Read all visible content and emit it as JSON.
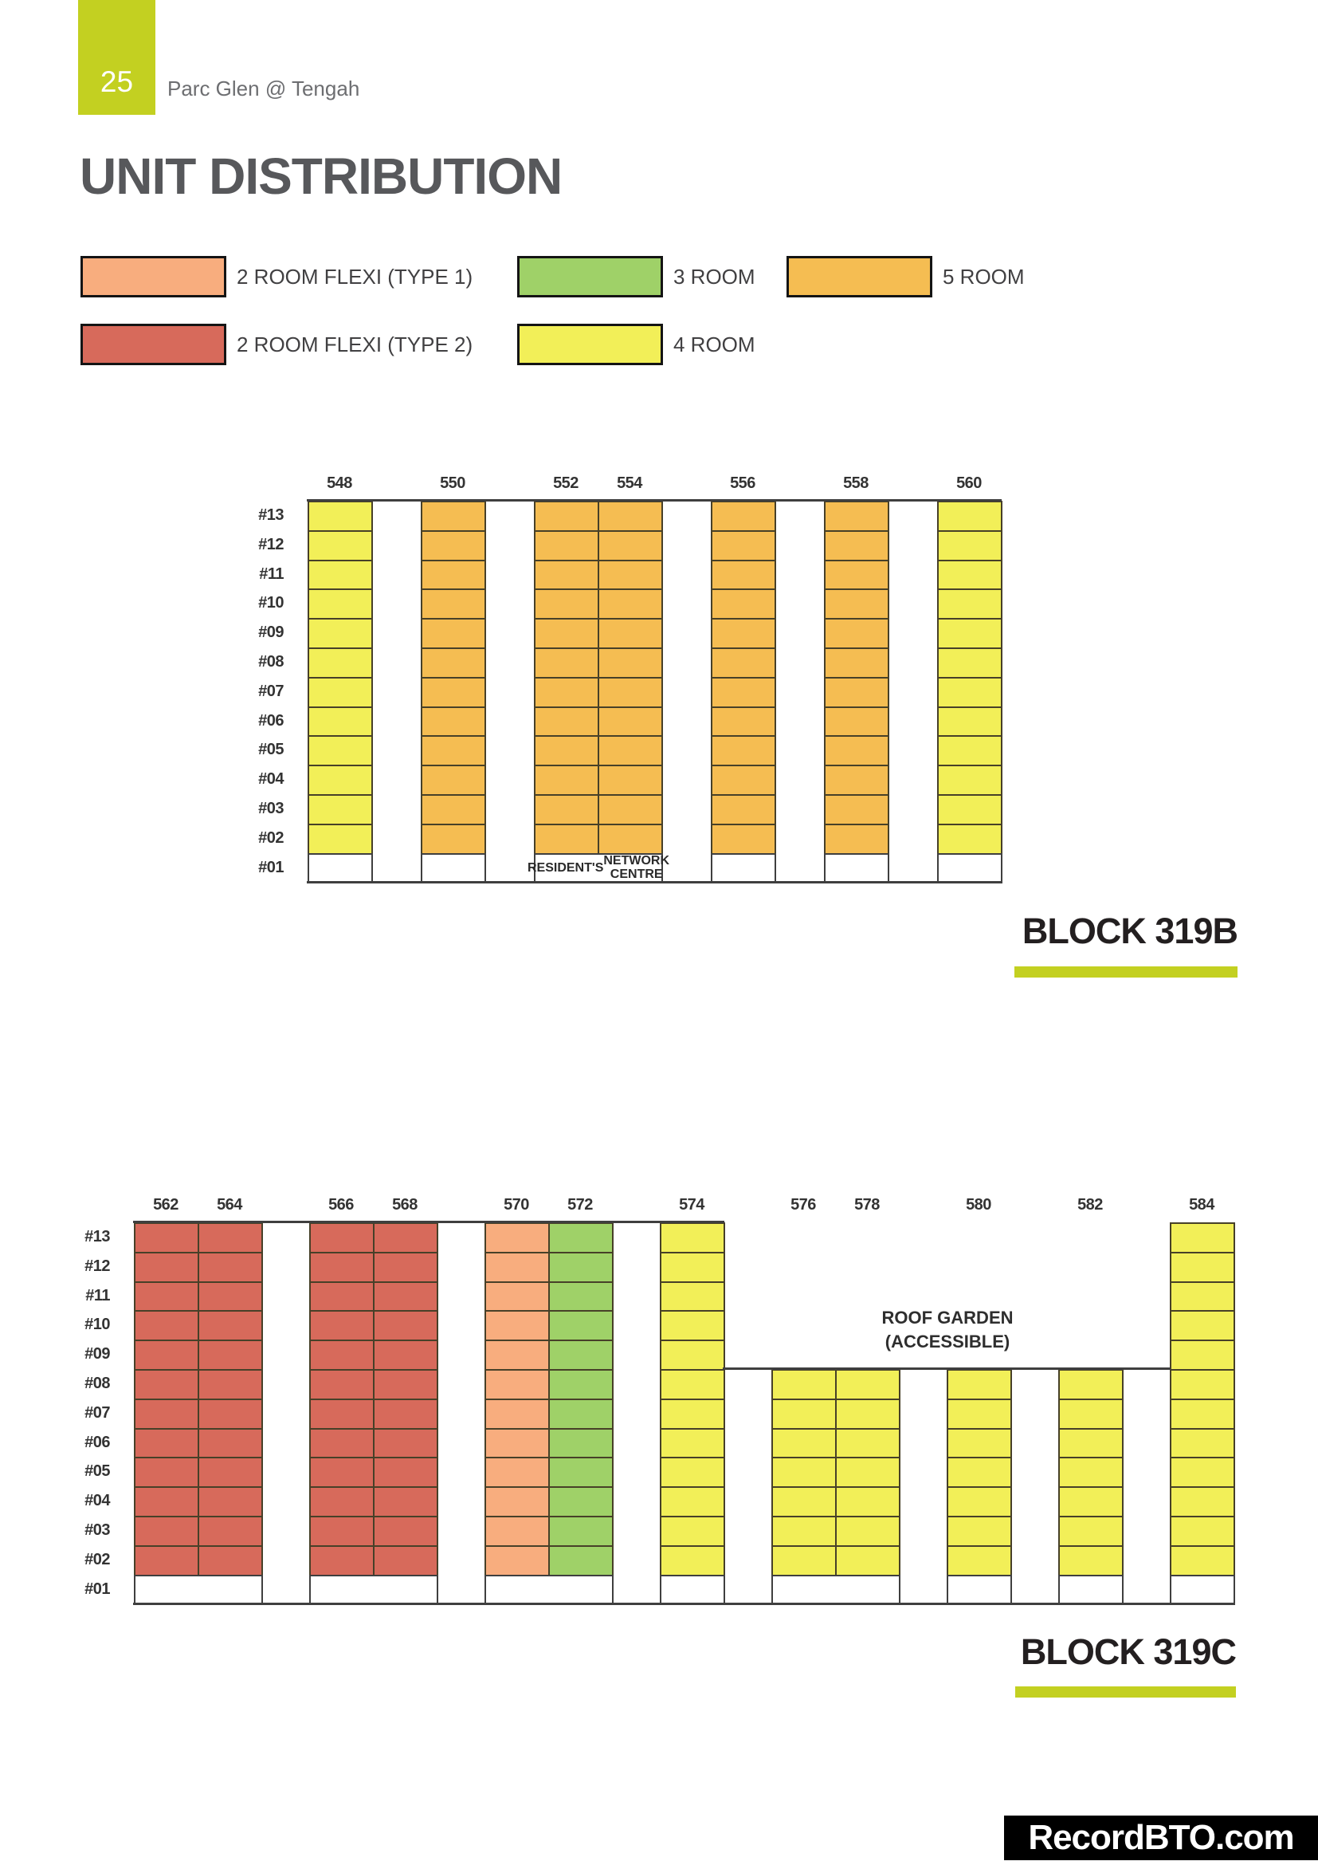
{
  "page": {
    "number": "25",
    "project_name": "Parc Glen @ Tengah",
    "title": "UNIT DISTRIBUTION",
    "accent_color": "#c3d021",
    "watermark": "RecordBTO.com"
  },
  "unit_colors": {
    "flexi1": "#f8ad7e",
    "flexi2": "#d76a5b",
    "room3": "#9fd168",
    "room4": "#f2ef58",
    "room5": "#f5bd52"
  },
  "legend": {
    "items": [
      {
        "label": "2 ROOM FLEXI (TYPE 1)",
        "type": "flexi1",
        "col": 0,
        "row": 0
      },
      {
        "label": "2 ROOM FLEXI (TYPE 2)",
        "type": "flexi2",
        "col": 0,
        "row": 1
      },
      {
        "label": "3 ROOM",
        "type": "room3",
        "col": 1,
        "row": 0
      },
      {
        "label": "4 ROOM",
        "type": "room4",
        "col": 1,
        "row": 1
      },
      {
        "label": "5 ROOM",
        "type": "room5",
        "col": 2,
        "row": 0
      }
    ]
  },
  "blocks": [
    {
      "label": "BLOCK 319B",
      "floors": [
        "#13",
        "#12",
        "#11",
        "#10",
        "#09",
        "#08",
        "#07",
        "#06",
        "#05",
        "#04",
        "#03",
        "#02",
        "#01"
      ],
      "void_deck_floor": "#01",
      "groups": [
        {
          "columns": [
            {
              "number": "548",
              "type": "room4"
            }
          ]
        },
        {
          "columns": [
            {
              "number": "550",
              "type": "room5"
            }
          ]
        },
        {
          "columns": [
            {
              "number": "552",
              "type": "room5"
            },
            {
              "number": "554",
              "type": "room5"
            }
          ],
          "ground_label": [
            "RESIDENT'S",
            "NETWORK CENTRE"
          ]
        },
        {
          "columns": [
            {
              "number": "556",
              "type": "room5"
            }
          ]
        },
        {
          "columns": [
            {
              "number": "558",
              "type": "room5"
            }
          ]
        },
        {
          "columns": [
            {
              "number": "560",
              "type": "room4"
            }
          ]
        }
      ]
    },
    {
      "label": "BLOCK 319C",
      "floors": [
        "#13",
        "#12",
        "#11",
        "#10",
        "#09",
        "#08",
        "#07",
        "#06",
        "#05",
        "#04",
        "#03",
        "#02",
        "#01"
      ],
      "void_deck_floor": "#01",
      "roof_garden": {
        "line1": "ROOF GARDEN",
        "line2": "(ACCESSIBLE)"
      },
      "groups": [
        {
          "columns": [
            {
              "number": "562",
              "type": "flexi2"
            },
            {
              "number": "564",
              "type": "flexi2"
            }
          ]
        },
        {
          "columns": [
            {
              "number": "566",
              "type": "flexi2"
            },
            {
              "number": "568",
              "type": "flexi2"
            }
          ]
        },
        {
          "columns": [
            {
              "number": "570",
              "type": "flexi1"
            },
            {
              "number": "572",
              "type": "room3"
            }
          ]
        },
        {
          "columns": [
            {
              "number": "574",
              "type": "room4"
            }
          ]
        },
        {
          "columns": [
            {
              "number": "576",
              "type": "room4",
              "top_floor": 8
            },
            {
              "number": "578",
              "type": "room4",
              "top_floor": 8
            }
          ]
        },
        {
          "columns": [
            {
              "number": "580",
              "type": "room4",
              "top_floor": 8
            }
          ]
        },
        {
          "columns": [
            {
              "number": "582",
              "type": "room4",
              "top_floor": 8
            }
          ]
        },
        {
          "columns": [
            {
              "number": "584",
              "type": "room4"
            }
          ]
        }
      ]
    }
  ]
}
